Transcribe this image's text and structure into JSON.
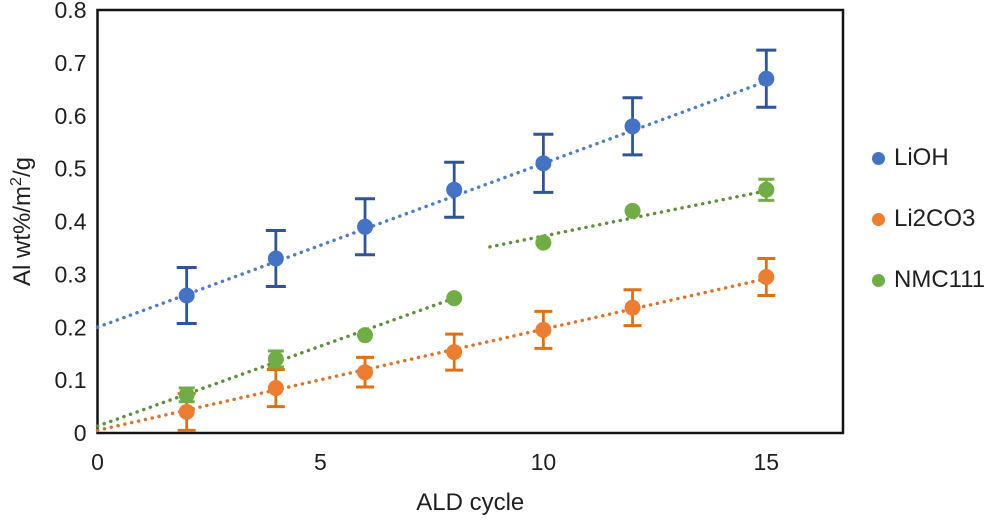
{
  "chart_data": {
    "type": "scatter",
    "title": "",
    "xlabel": "ALD cycle",
    "ylabel": {
      "prefix": "Al wt%/m",
      "superscript": "2",
      "suffix": "/g"
    },
    "xlim": [
      0,
      16.72
    ],
    "ylim": [
      0,
      0.8
    ],
    "x_ticks": [
      0,
      5,
      10,
      15
    ],
    "x_tick_labels": [
      "0",
      "5",
      "10",
      "15"
    ],
    "y_ticks": [
      0,
      0.1,
      0.2,
      0.3,
      0.4,
      0.5,
      0.6,
      0.7,
      0.8
    ],
    "y_tick_labels": [
      "0",
      "0.1",
      "0.2",
      "0.3",
      "0.4",
      "0.5",
      "0.6",
      "0.7",
      "0.8"
    ],
    "grid": false,
    "legend_position": "right-outside",
    "text_color": "#1f1f1f",
    "axis_color": "#141414",
    "series": [
      {
        "name": "LiOH",
        "marker_color": "#4472C4",
        "errorbar_color": "#2F5597",
        "trend_color": "#4E7DC5",
        "trend_style": "dotted",
        "x": [
          2,
          4,
          6,
          8,
          10,
          12,
          15
        ],
        "y": [
          0.26,
          0.33,
          0.39,
          0.46,
          0.51,
          0.58,
          0.67
        ],
        "yerr": [
          0.053,
          0.053,
          0.053,
          0.052,
          0.055,
          0.054,
          0.054
        ],
        "trendlines": [
          {
            "x1": 0,
            "y1": 0.2,
            "x2": 15,
            "y2": 0.665
          }
        ]
      },
      {
        "name": "Li2CO3",
        "marker_color": "#ED7D31",
        "errorbar_color": "#E2700F",
        "trend_color": "#DC7226",
        "trend_style": "dotted",
        "x": [
          2,
          4,
          6,
          8,
          10,
          12,
          15
        ],
        "y": [
          0.04,
          0.085,
          0.115,
          0.153,
          0.195,
          0.237,
          0.295
        ],
        "yerr": [
          0.035,
          0.035,
          0.028,
          0.034,
          0.035,
          0.034,
          0.035
        ],
        "trendlines": [
          {
            "x1": 0,
            "y1": 0.005,
            "x2": 15,
            "y2": 0.292
          }
        ]
      },
      {
        "name": "NMC111",
        "marker_color": "#70AD47",
        "errorbar_color": "#70AD47",
        "trend_color": "#5C8F39",
        "trend_style": "dotted",
        "x": [
          2,
          4,
          6,
          8,
          10,
          12,
          15
        ],
        "y": [
          0.072,
          0.14,
          0.185,
          0.255,
          0.36,
          0.42,
          0.46
        ],
        "yerr": [
          0.013,
          0.015,
          0,
          0,
          0,
          0,
          0.02
        ],
        "trendlines": [
          {
            "x1": 0,
            "y1": 0.013,
            "x2": 8,
            "y2": 0.255
          },
          {
            "x1": 8.8,
            "y1": 0.352,
            "x2": 15,
            "y2": 0.458
          }
        ]
      }
    ]
  }
}
